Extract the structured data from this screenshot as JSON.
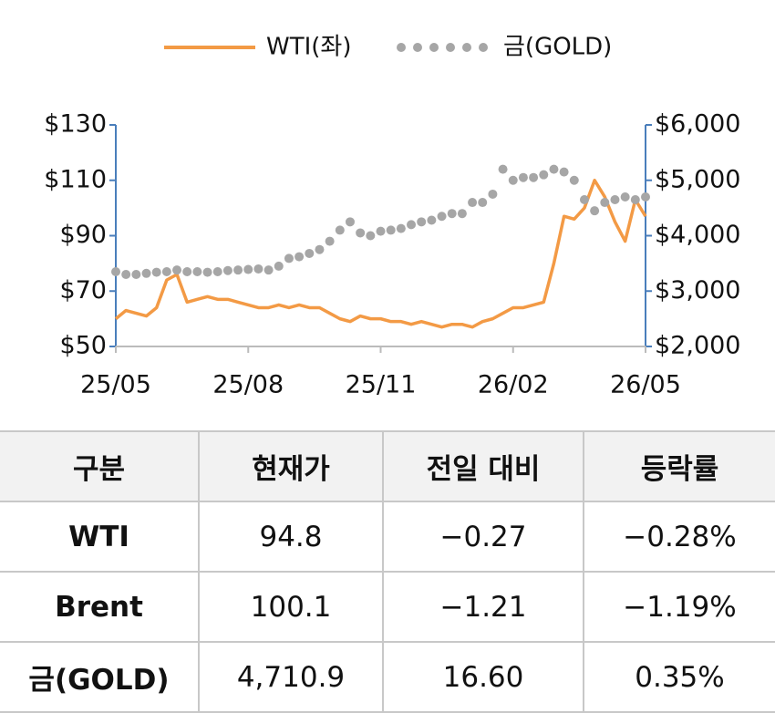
{
  "chart_data": {
    "type": "line",
    "categories": [
      "25/05",
      null,
      null,
      null,
      null,
      null,
      null,
      null,
      null,
      null,
      null,
      null,
      null,
      "25/08",
      null,
      null,
      null,
      null,
      null,
      null,
      null,
      null,
      null,
      null,
      null,
      null,
      "25/11",
      null,
      null,
      null,
      null,
      null,
      null,
      null,
      null,
      null,
      null,
      null,
      null,
      "26/02",
      null,
      null,
      null,
      null,
      null,
      null,
      null,
      null,
      null,
      null,
      null,
      null,
      "26/05"
    ],
    "series": [
      {
        "name": "WTI(좌)",
        "color": "#f39a45",
        "style": "line",
        "axis": "y",
        "values": [
          60,
          63,
          62,
          61,
          64,
          74,
          76,
          66,
          67,
          68,
          67,
          67,
          66,
          65,
          64,
          64,
          65,
          64,
          65,
          64,
          64,
          62,
          60,
          59,
          61,
          60,
          60,
          59,
          59,
          58,
          59,
          58,
          57,
          58,
          58,
          57,
          59,
          60,
          62,
          64,
          64,
          65,
          66,
          80,
          97,
          96,
          100,
          110,
          104,
          95,
          88,
          103,
          97
        ]
      },
      {
        "name": "금(GOLD)",
        "color": "#a6a6a6",
        "style": "dots",
        "axis": "y2",
        "values": [
          3350,
          3300,
          3300,
          3320,
          3340,
          3350,
          3380,
          3350,
          3350,
          3340,
          3350,
          3370,
          3380,
          3390,
          3400,
          3380,
          3450,
          3590,
          3620,
          3680,
          3750,
          3900,
          4100,
          4250,
          4050,
          4000,
          4080,
          4100,
          4130,
          4200,
          4250,
          4280,
          4350,
          4400,
          4400,
          4600,
          4600,
          4750,
          5200,
          5000,
          5050,
          5050,
          5100,
          5200,
          5150,
          5000,
          4650,
          4450,
          4600,
          4650,
          4700,
          4650,
          4700
        ]
      }
    ],
    "ylim": [
      50,
      130
    ],
    "yticks": [
      {
        "value": 50,
        "label": "$50"
      },
      {
        "value": 70,
        "label": "$70"
      },
      {
        "value": 90,
        "label": "$90"
      },
      {
        "value": 110,
        "label": "$110"
      },
      {
        "value": 130,
        "label": "$130"
      }
    ],
    "y2lim": [
      2000,
      6000
    ],
    "y2ticks": [
      {
        "value": 2000,
        "label": "$2,000"
      },
      {
        "value": 3000,
        "label": "$3,000"
      },
      {
        "value": 4000,
        "label": "$4,000"
      },
      {
        "value": 5000,
        "label": "$5,000"
      },
      {
        "value": 6000,
        "label": "$6,000"
      }
    ],
    "legend": "top"
  },
  "table": {
    "header": [
      "구분",
      "현재가",
      "전일 대비",
      "등락률"
    ],
    "rows": [
      [
        "WTI",
        "94.8",
        "−0.27",
        "−0.28%"
      ],
      [
        "Brent",
        "100.1",
        "−1.21",
        "−1.19%"
      ],
      [
        "금(GOLD)",
        "4,710.9",
        "16.60",
        "0.35%"
      ]
    ]
  }
}
